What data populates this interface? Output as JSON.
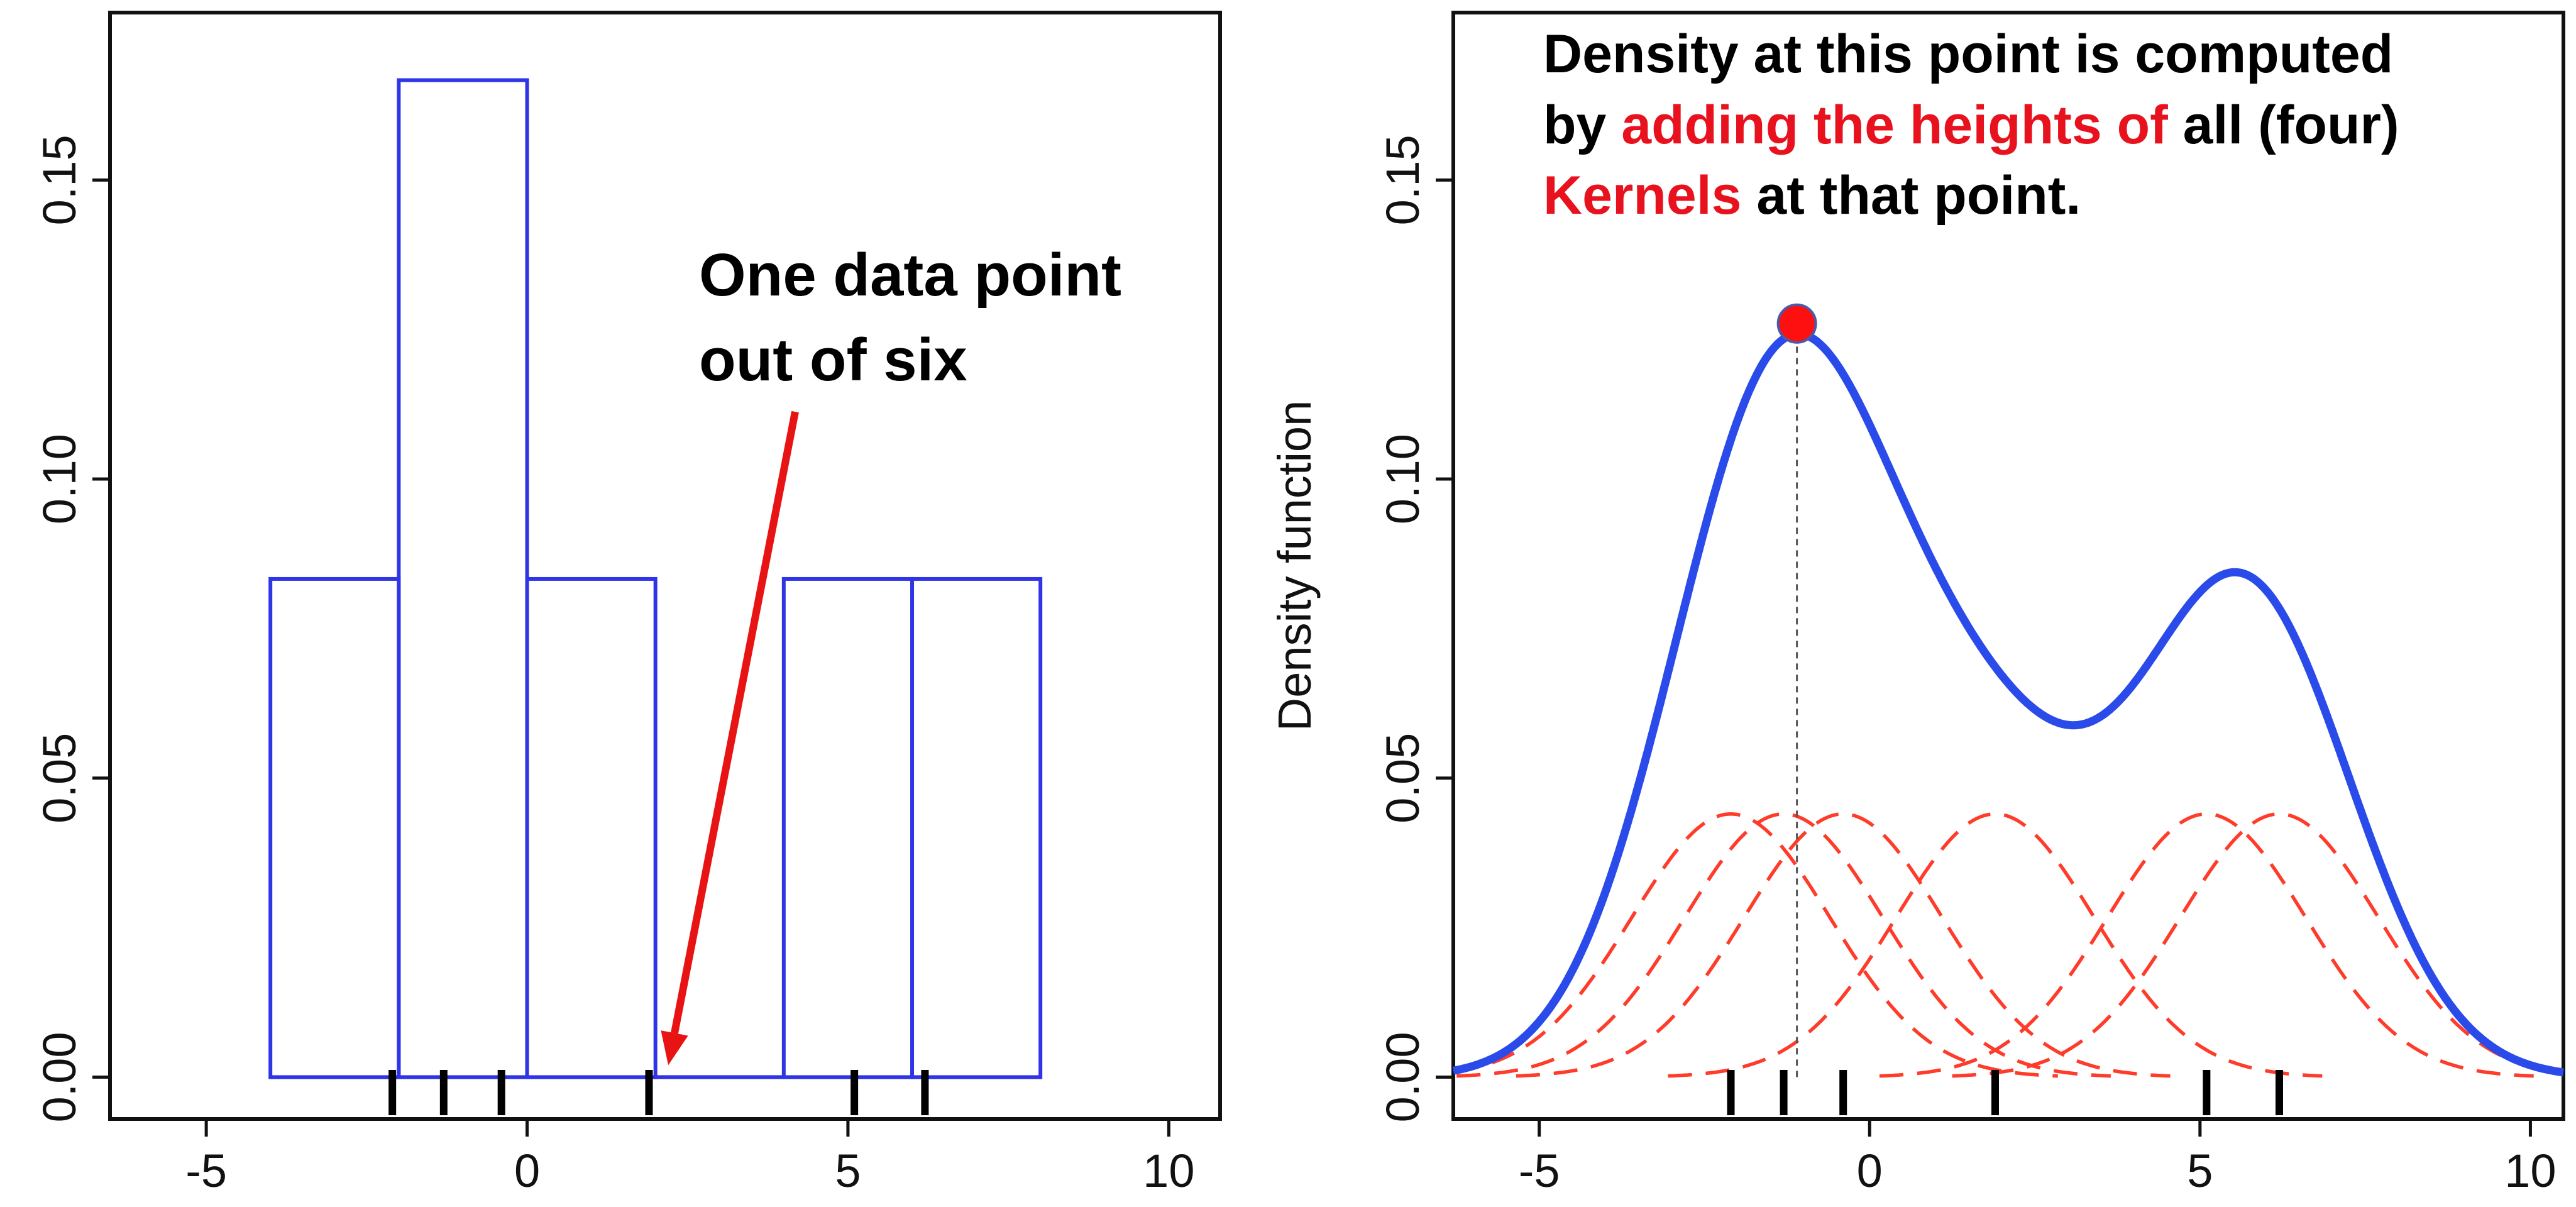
{
  "colors": {
    "histogram": "#2f35e6",
    "density": "#2a4bea",
    "kernel": "#ff3b2a",
    "arrow": "#e81414",
    "highlight_text": "#e8121e",
    "point_fill": "#ff1010",
    "axis": "#111111",
    "rug": "#000000"
  },
  "chart_data": [
    {
      "type": "histogram",
      "xlim": [
        -6.5,
        10.8
      ],
      "ylim": [
        -0.007,
        0.178
      ],
      "x_ticks": [
        "-5",
        "0",
        "5",
        "10"
      ],
      "x_tick_values": [
        -5,
        0,
        5,
        10
      ],
      "y_ticks": [
        "0.00",
        "0.05",
        "0.10",
        "0.15"
      ],
      "y_tick_values": [
        0,
        0.05,
        0.1,
        0.15
      ],
      "bins": [
        {
          "x0": -4,
          "x1": -2,
          "height": 0.0833
        },
        {
          "x0": -2,
          "x1": 0,
          "height": 0.1667
        },
        {
          "x0": 0,
          "x1": 2,
          "height": 0.0833
        },
        {
          "x0": 2,
          "x1": 4,
          "height": 0
        },
        {
          "x0": 4,
          "x1": 6,
          "height": 0.0833
        },
        {
          "x0": 6,
          "x1": 8,
          "height": 0.0833
        }
      ],
      "rug": [
        -2.1,
        -1.3,
        -0.4,
        1.9,
        5.1,
        6.2
      ],
      "annotation": {
        "line1": "One data point",
        "line2": "out of six",
        "arrow_tip": [
          2.2,
          0.002
        ]
      },
      "xlabel": "",
      "ylabel": ""
    },
    {
      "type": "line",
      "xlim": [
        -6.3,
        10.5
      ],
      "ylim": [
        -0.007,
        0.178
      ],
      "x_ticks": [
        "-5",
        "0",
        "5",
        "10"
      ],
      "x_tick_values": [
        -5,
        0,
        5,
        10
      ],
      "y_ticks": [
        "0.00",
        "0.05",
        "0.10",
        "0.15"
      ],
      "y_tick_values": [
        0,
        0.05,
        0.1,
        0.15
      ],
      "ylabel": "Density function",
      "xlabel": "",
      "kernel_centers": [
        -2.1,
        -1.3,
        -0.4,
        1.9,
        5.1,
        6.2
      ],
      "kernel_bandwidth": 1.5,
      "kernel_height": 0.044,
      "highlight_point": {
        "x": -1.1,
        "y": 0.126
      },
      "rug": [
        -2.1,
        -1.3,
        -0.4,
        1.9,
        5.1,
        6.2
      ],
      "annotation": {
        "line1": "Density at this point is computed",
        "line2_a": "by ",
        "line2_b": "adding the heights of",
        "line2_c": " all (four)",
        "line3_a": "Kernels",
        "line3_b": " at that point."
      }
    }
  ]
}
